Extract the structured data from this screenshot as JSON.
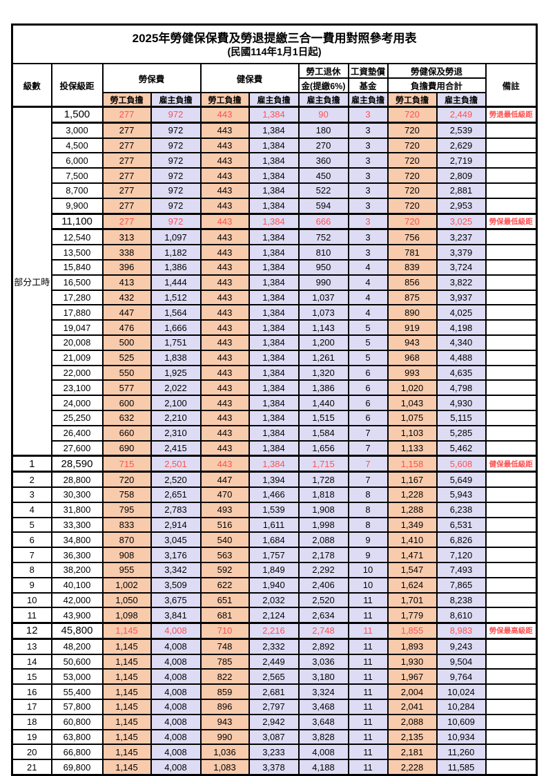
{
  "title": "2025年勞健保保費及勞退提繳三合一費用對照參考用表",
  "subtitle": "(民國114年1月1日起)",
  "colors": {
    "employee_fill": "#F8CBAD",
    "employer_fill": "#DEDCF4",
    "highlight_text": "#FF5050",
    "border": "#000000"
  },
  "header": {
    "level": "級數",
    "bracket": "投保級距",
    "labor_insurance": "勞保費",
    "health_insurance": "健保費",
    "pension_line1": "勞工退休",
    "pension_line2": "金(提繳6%)",
    "wage_fund_line1": "工資墊償",
    "wage_fund_line2": "基金",
    "total_line1": "勞健保及勞退",
    "total_line2": "負擔費用合計",
    "remark": "備註",
    "employee": "勞工負擔",
    "employer": "雇主負擔"
  },
  "table": {
    "group_label": "部分工時",
    "rows": [
      {
        "level": "",
        "bracket": "1,500",
        "values": [
          "277",
          "972",
          "443",
          "1,384",
          "90",
          "3",
          "720",
          "2,449"
        ],
        "note": "勞退最低級距"
      },
      {
        "level": "",
        "bracket": "3,000",
        "values": [
          "277",
          "972",
          "443",
          "1,384",
          "180",
          "3",
          "720",
          "2,539"
        ],
        "note": ""
      },
      {
        "level": "",
        "bracket": "4,500",
        "values": [
          "277",
          "972",
          "443",
          "1,384",
          "270",
          "3",
          "720",
          "2,629"
        ],
        "note": ""
      },
      {
        "level": "",
        "bracket": "6,000",
        "values": [
          "277",
          "972",
          "443",
          "1,384",
          "360",
          "3",
          "720",
          "2,719"
        ],
        "note": ""
      },
      {
        "level": "",
        "bracket": "7,500",
        "values": [
          "277",
          "972",
          "443",
          "1,384",
          "450",
          "3",
          "720",
          "2,809"
        ],
        "note": ""
      },
      {
        "level": "",
        "bracket": "8,700",
        "values": [
          "277",
          "972",
          "443",
          "1,384",
          "522",
          "3",
          "720",
          "2,881"
        ],
        "note": ""
      },
      {
        "level": "",
        "bracket": "9,900",
        "values": [
          "277",
          "972",
          "443",
          "1,384",
          "594",
          "3",
          "720",
          "2,953"
        ],
        "note": ""
      },
      {
        "level": "",
        "bracket": "11,100",
        "values": [
          "277",
          "972",
          "443",
          "1,384",
          "666",
          "3",
          "720",
          "3,025"
        ],
        "note": "勞保最低級距"
      },
      {
        "level": "",
        "bracket": "12,540",
        "values": [
          "313",
          "1,097",
          "443",
          "1,384",
          "752",
          "3",
          "756",
          "3,237"
        ],
        "note": ""
      },
      {
        "level": "",
        "bracket": "13,500",
        "values": [
          "338",
          "1,182",
          "443",
          "1,384",
          "810",
          "3",
          "781",
          "3,379"
        ],
        "note": ""
      },
      {
        "level": "",
        "bracket": "15,840",
        "values": [
          "396",
          "1,386",
          "443",
          "1,384",
          "950",
          "4",
          "839",
          "3,724"
        ],
        "note": ""
      },
      {
        "level": "",
        "bracket": "16,500",
        "values": [
          "413",
          "1,444",
          "443",
          "1,384",
          "990",
          "4",
          "856",
          "3,822"
        ],
        "note": ""
      },
      {
        "level": "",
        "bracket": "17,280",
        "values": [
          "432",
          "1,512",
          "443",
          "1,384",
          "1,037",
          "4",
          "875",
          "3,937"
        ],
        "note": ""
      },
      {
        "level": "",
        "bracket": "17,880",
        "values": [
          "447",
          "1,564",
          "443",
          "1,384",
          "1,073",
          "4",
          "890",
          "4,025"
        ],
        "note": ""
      },
      {
        "level": "",
        "bracket": "19,047",
        "values": [
          "476",
          "1,666",
          "443",
          "1,384",
          "1,143",
          "5",
          "919",
          "4,198"
        ],
        "note": ""
      },
      {
        "level": "",
        "bracket": "20,008",
        "values": [
          "500",
          "1,751",
          "443",
          "1,384",
          "1,200",
          "5",
          "943",
          "4,340"
        ],
        "note": ""
      },
      {
        "level": "",
        "bracket": "21,009",
        "values": [
          "525",
          "1,838",
          "443",
          "1,384",
          "1,261",
          "5",
          "968",
          "4,488"
        ],
        "note": ""
      },
      {
        "level": "",
        "bracket": "22,000",
        "values": [
          "550",
          "1,925",
          "443",
          "1,384",
          "1,320",
          "6",
          "993",
          "4,635"
        ],
        "note": ""
      },
      {
        "level": "",
        "bracket": "23,100",
        "values": [
          "577",
          "2,022",
          "443",
          "1,384",
          "1,386",
          "6",
          "1,020",
          "4,798"
        ],
        "note": ""
      },
      {
        "level": "",
        "bracket": "24,000",
        "values": [
          "600",
          "2,100",
          "443",
          "1,384",
          "1,440",
          "6",
          "1,043",
          "4,930"
        ],
        "note": ""
      },
      {
        "level": "",
        "bracket": "25,250",
        "values": [
          "632",
          "2,210",
          "443",
          "1,384",
          "1,515",
          "6",
          "1,075",
          "5,115"
        ],
        "note": ""
      },
      {
        "level": "",
        "bracket": "26,400",
        "values": [
          "660",
          "2,310",
          "443",
          "1,384",
          "1,584",
          "7",
          "1,103",
          "5,285"
        ],
        "note": ""
      },
      {
        "level": "",
        "bracket": "27,600",
        "values": [
          "690",
          "2,415",
          "443",
          "1,384",
          "1,656",
          "7",
          "1,133",
          "5,462"
        ],
        "note": ""
      },
      {
        "level": "1",
        "bracket": "28,590",
        "values": [
          "715",
          "2,501",
          "443",
          "1,384",
          "1,715",
          "7",
          "1,158",
          "5,608"
        ],
        "note": "健保最低級距"
      },
      {
        "level": "2",
        "bracket": "28,800",
        "values": [
          "720",
          "2,520",
          "447",
          "1,394",
          "1,728",
          "7",
          "1,167",
          "5,649"
        ],
        "note": ""
      },
      {
        "level": "3",
        "bracket": "30,300",
        "values": [
          "758",
          "2,651",
          "470",
          "1,466",
          "1,818",
          "8",
          "1,228",
          "5,943"
        ],
        "note": ""
      },
      {
        "level": "4",
        "bracket": "31,800",
        "values": [
          "795",
          "2,783",
          "493",
          "1,539",
          "1,908",
          "8",
          "1,288",
          "6,238"
        ],
        "note": ""
      },
      {
        "level": "5",
        "bracket": "33,300",
        "values": [
          "833",
          "2,914",
          "516",
          "1,611",
          "1,998",
          "8",
          "1,349",
          "6,531"
        ],
        "note": ""
      },
      {
        "level": "6",
        "bracket": "34,800",
        "values": [
          "870",
          "3,045",
          "540",
          "1,684",
          "2,088",
          "9",
          "1,410",
          "6,826"
        ],
        "note": ""
      },
      {
        "level": "7",
        "bracket": "36,300",
        "values": [
          "908",
          "3,176",
          "563",
          "1,757",
          "2,178",
          "9",
          "1,471",
          "7,120"
        ],
        "note": ""
      },
      {
        "level": "8",
        "bracket": "38,200",
        "values": [
          "955",
          "3,342",
          "592",
          "1,849",
          "2,292",
          "10",
          "1,547",
          "7,493"
        ],
        "note": ""
      },
      {
        "level": "9",
        "bracket": "40,100",
        "values": [
          "1,002",
          "3,509",
          "622",
          "1,940",
          "2,406",
          "10",
          "1,624",
          "7,865"
        ],
        "note": ""
      },
      {
        "level": "10",
        "bracket": "42,000",
        "values": [
          "1,050",
          "3,675",
          "651",
          "2,032",
          "2,520",
          "11",
          "1,701",
          "8,238"
        ],
        "note": ""
      },
      {
        "level": "11",
        "bracket": "43,900",
        "values": [
          "1,098",
          "3,841",
          "681",
          "2,124",
          "2,634",
          "11",
          "1,779",
          "8,610"
        ],
        "note": ""
      },
      {
        "level": "12",
        "bracket": "45,800",
        "values": [
          "1,145",
          "4,008",
          "710",
          "2,216",
          "2,748",
          "11",
          "1,855",
          "8,983"
        ],
        "note": "勞保最高級距"
      },
      {
        "level": "13",
        "bracket": "48,200",
        "values": [
          "1,145",
          "4,008",
          "748",
          "2,332",
          "2,892",
          "11",
          "1,893",
          "9,243"
        ],
        "note": ""
      },
      {
        "level": "14",
        "bracket": "50,600",
        "values": [
          "1,145",
          "4,008",
          "785",
          "2,449",
          "3,036",
          "11",
          "1,930",
          "9,504"
        ],
        "note": ""
      },
      {
        "level": "15",
        "bracket": "53,000",
        "values": [
          "1,145",
          "4,008",
          "822",
          "2,565",
          "3,180",
          "11",
          "1,967",
          "9,764"
        ],
        "note": ""
      },
      {
        "level": "16",
        "bracket": "55,400",
        "values": [
          "1,145",
          "4,008",
          "859",
          "2,681",
          "3,324",
          "11",
          "2,004",
          "10,024"
        ],
        "note": ""
      },
      {
        "level": "17",
        "bracket": "57,800",
        "values": [
          "1,145",
          "4,008",
          "896",
          "2,797",
          "3,468",
          "11",
          "2,041",
          "10,284"
        ],
        "note": ""
      },
      {
        "level": "18",
        "bracket": "60,800",
        "values": [
          "1,145",
          "4,008",
          "943",
          "2,942",
          "3,648",
          "11",
          "2,088",
          "10,609"
        ],
        "note": ""
      },
      {
        "level": "19",
        "bracket": "63,800",
        "values": [
          "1,145",
          "4,008",
          "990",
          "3,087",
          "3,828",
          "11",
          "2,135",
          "10,934"
        ],
        "note": ""
      },
      {
        "level": "20",
        "bracket": "66,800",
        "values": [
          "1,145",
          "4,008",
          "1,036",
          "3,233",
          "4,008",
          "11",
          "2,181",
          "11,260"
        ],
        "note": ""
      },
      {
        "level": "21",
        "bracket": "69,800",
        "values": [
          "1,145",
          "4,008",
          "1,083",
          "3,378",
          "4,188",
          "11",
          "2,228",
          "11,585"
        ],
        "note": ""
      }
    ]
  }
}
